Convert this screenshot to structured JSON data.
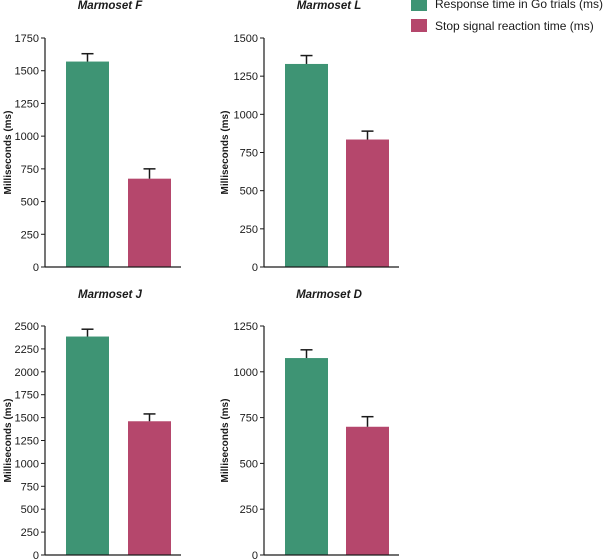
{
  "legend": {
    "items": [
      {
        "label": "Response time in Go trials (ms)",
        "color": "#3e9474"
      },
      {
        "label": "Stop signal reaction time (ms)",
        "color": "#b5476c"
      }
    ]
  },
  "chart_data": [
    {
      "type": "bar",
      "title": "Marmoset F",
      "ylabel": "Milliseconds (ms)",
      "xlabel": "",
      "ylim": [
        0,
        1750
      ],
      "yticks": [
        0,
        250,
        500,
        750,
        1000,
        1250,
        1500,
        1750
      ],
      "categories": [
        "Response time in Go trials (ms)",
        "Stop signal reaction time (ms)"
      ],
      "values": [
        1570,
        675
      ],
      "errors": [
        60,
        75
      ]
    },
    {
      "type": "bar",
      "title": "Marmoset L",
      "ylabel": "Milliseconds (ms)",
      "xlabel": "",
      "ylim": [
        0,
        1500
      ],
      "yticks": [
        0,
        250,
        500,
        750,
        1000,
        1250,
        1500
      ],
      "categories": [
        "Response time in Go trials (ms)",
        "Stop signal reaction time (ms)"
      ],
      "values": [
        1330,
        835
      ],
      "errors": [
        55,
        55
      ]
    },
    {
      "type": "bar",
      "title": "Marmoset J",
      "ylabel": "Milliseconds (ms)",
      "xlabel": "",
      "ylim": [
        0,
        2500
      ],
      "yticks": [
        0,
        250,
        500,
        750,
        1000,
        1250,
        1500,
        1750,
        2000,
        2250,
        2500
      ],
      "categories": [
        "Response time in Go trials (ms)",
        "Stop signal reaction time (ms)"
      ],
      "values": [
        2385,
        1460
      ],
      "errors": [
        80,
        80
      ]
    },
    {
      "type": "bar",
      "title": "Marmoset D",
      "ylabel": "Milliseconds (ms)",
      "xlabel": "",
      "ylim": [
        0,
        1250
      ],
      "yticks": [
        0,
        250,
        500,
        750,
        1000,
        1250
      ],
      "categories": [
        "Response time in Go trials (ms)",
        "Stop signal reaction time (ms)"
      ],
      "values": [
        1075,
        700
      ],
      "errors": [
        45,
        55
      ]
    }
  ]
}
